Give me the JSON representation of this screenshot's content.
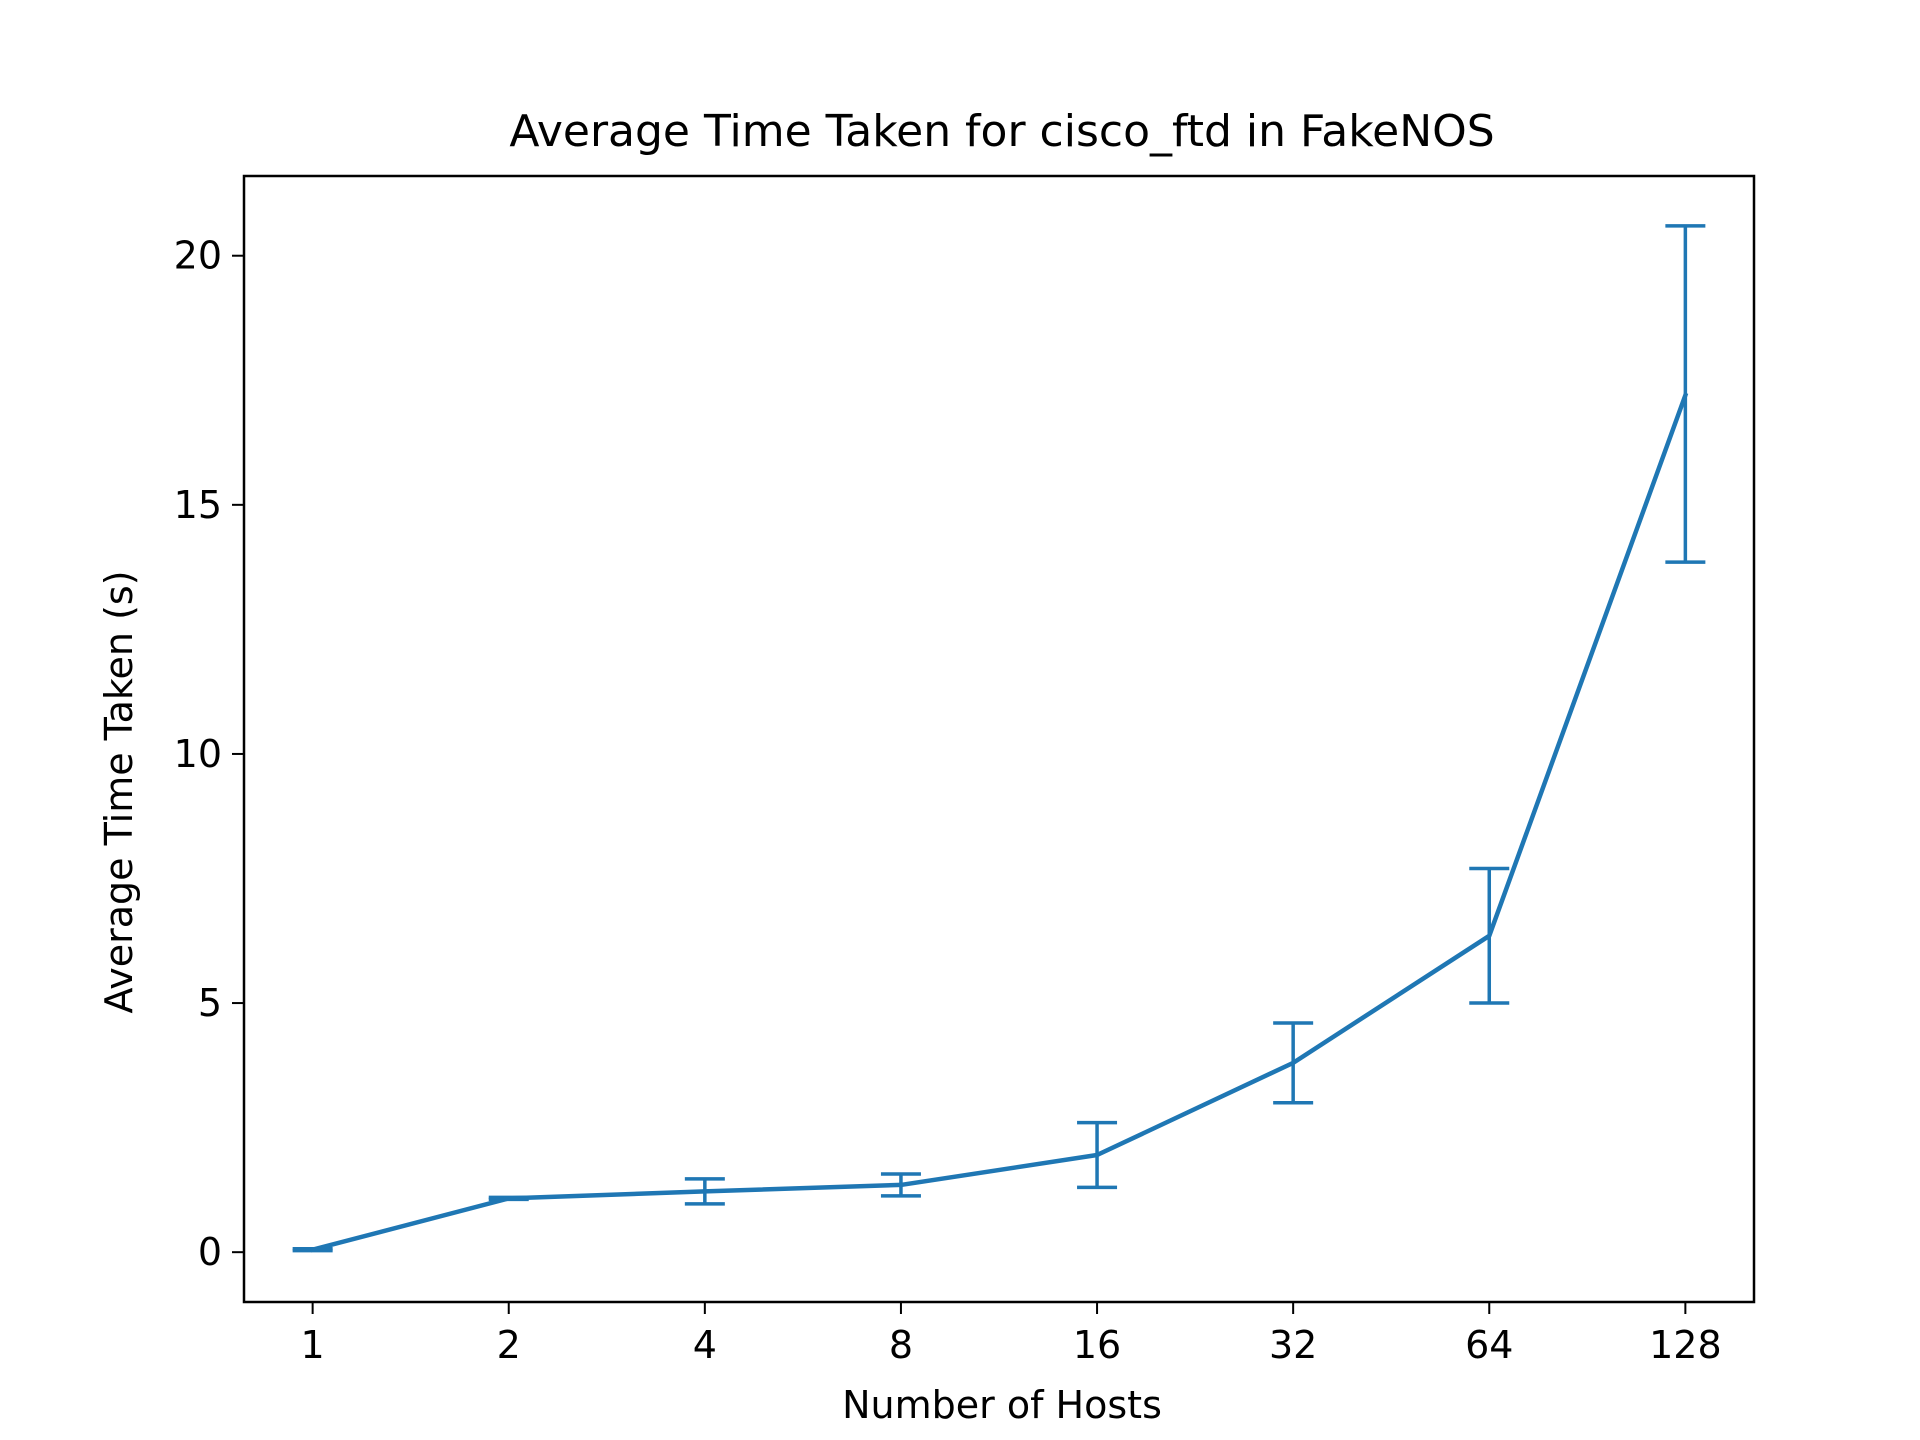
{
  "chart_data": {
    "type": "line",
    "title": "Average Time Taken for cisco_ftd in FakeNOS",
    "xlabel": "Number of Hosts",
    "ylabel": "Average Time Taken (s)",
    "x_scale": "log2",
    "x": [
      1,
      2,
      4,
      8,
      16,
      32,
      64,
      128
    ],
    "x_tick_labels": [
      "1",
      "2",
      "4",
      "8",
      "16",
      "32",
      "64",
      "128"
    ],
    "y_ticks": [
      0,
      5,
      10,
      15,
      20
    ],
    "y_tick_labels": [
      "0",
      "5",
      "10",
      "15",
      "20"
    ],
    "ylim": [
      -1,
      21.6
    ],
    "grid": false,
    "series": [
      {
        "color": "#1f77b4",
        "values": [
          0.05,
          1.08,
          1.22,
          1.35,
          1.95,
          3.8,
          6.35,
          17.2
        ],
        "error_bars": [
          {
            "low": 0.03,
            "high": 0.07
          },
          {
            "low": 1.06,
            "high": 1.1
          },
          {
            "low": 0.97,
            "high": 1.47
          },
          {
            "low": 1.13,
            "high": 1.57
          },
          {
            "low": 1.3,
            "high": 2.6
          },
          {
            "low": 3.0,
            "high": 4.6
          },
          {
            "low": 5.0,
            "high": 7.7
          },
          {
            "low": 13.85,
            "high": 20.6
          }
        ]
      }
    ]
  }
}
